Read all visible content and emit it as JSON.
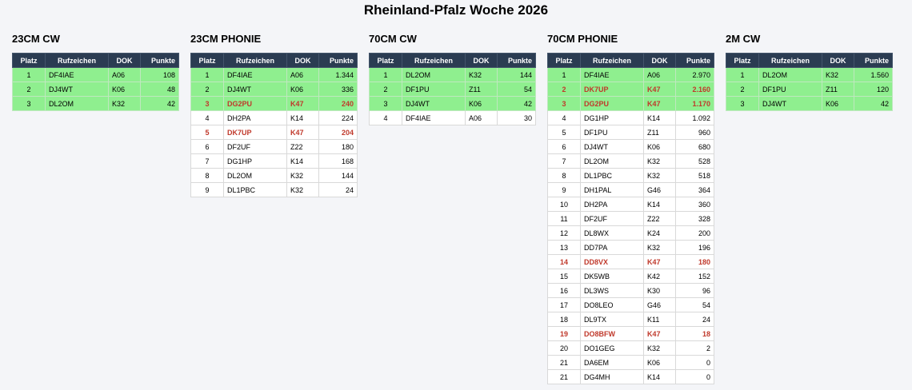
{
  "page_title": "Rheinland-Pfalz Woche 2026",
  "columns": [
    "Platz",
    "Rufzeichen",
    "DOK",
    "Punkte"
  ],
  "highlight_colors": {
    "podium": "#8fef8f",
    "own_dok": "#c0392b",
    "header": "#2b3c52"
  },
  "bands": [
    {
      "title": "23CM CW",
      "rows": [
        {
          "platz": "1",
          "call": "DF4IAE",
          "dok": "A06",
          "pts": "108"
        },
        {
          "platz": "2",
          "call": "DJ4WT",
          "dok": "K06",
          "pts": "48"
        },
        {
          "platz": "3",
          "call": "DL2OM",
          "dok": "K32",
          "pts": "42"
        }
      ]
    },
    {
      "title": "23CM PHONIE",
      "rows": [
        {
          "platz": "1",
          "call": "DF4IAE",
          "dok": "A06",
          "pts": "1.344"
        },
        {
          "platz": "2",
          "call": "DJ4WT",
          "dok": "K06",
          "pts": "336"
        },
        {
          "platz": "3",
          "call": "DG2PU",
          "dok": "K47",
          "pts": "240"
        },
        {
          "platz": "4",
          "call": "DH2PA",
          "dok": "K14",
          "pts": "224"
        },
        {
          "platz": "5",
          "call": "DK7UP",
          "dok": "K47",
          "pts": "204"
        },
        {
          "platz": "6",
          "call": "DF2UF",
          "dok": "Z22",
          "pts": "180"
        },
        {
          "platz": "7",
          "call": "DG1HP",
          "dok": "K14",
          "pts": "168"
        },
        {
          "platz": "8",
          "call": "DL2OM",
          "dok": "K32",
          "pts": "144"
        },
        {
          "platz": "9",
          "call": "DL1PBC",
          "dok": "K32",
          "pts": "24"
        }
      ]
    },
    {
      "title": "70CM CW",
      "rows": [
        {
          "platz": "1",
          "call": "DL2OM",
          "dok": "K32",
          "pts": "144"
        },
        {
          "platz": "2",
          "call": "DF1PU",
          "dok": "Z11",
          "pts": "54"
        },
        {
          "platz": "3",
          "call": "DJ4WT",
          "dok": "K06",
          "pts": "42"
        },
        {
          "platz": "4",
          "call": "DF4IAE",
          "dok": "A06",
          "pts": "30"
        }
      ]
    },
    {
      "title": "70CM PHONIE",
      "rows": [
        {
          "platz": "1",
          "call": "DF4IAE",
          "dok": "A06",
          "pts": "2.970"
        },
        {
          "platz": "2",
          "call": "DK7UP",
          "dok": "K47",
          "pts": "2.160"
        },
        {
          "platz": "3",
          "call": "DG2PU",
          "dok": "K47",
          "pts": "1.170"
        },
        {
          "platz": "4",
          "call": "DG1HP",
          "dok": "K14",
          "pts": "1.092"
        },
        {
          "platz": "5",
          "call": "DF1PU",
          "dok": "Z11",
          "pts": "960"
        },
        {
          "platz": "6",
          "call": "DJ4WT",
          "dok": "K06",
          "pts": "680"
        },
        {
          "platz": "7",
          "call": "DL2OM",
          "dok": "K32",
          "pts": "528"
        },
        {
          "platz": "8",
          "call": "DL1PBC",
          "dok": "K32",
          "pts": "518"
        },
        {
          "platz": "9",
          "call": "DH1PAL",
          "dok": "G46",
          "pts": "364"
        },
        {
          "platz": "10",
          "call": "DH2PA",
          "dok": "K14",
          "pts": "360"
        },
        {
          "platz": "11",
          "call": "DF2UF",
          "dok": "Z22",
          "pts": "328"
        },
        {
          "platz": "12",
          "call": "DL8WX",
          "dok": "K24",
          "pts": "200"
        },
        {
          "platz": "13",
          "call": "DD7PA",
          "dok": "K32",
          "pts": "196"
        },
        {
          "platz": "14",
          "call": "DD8VX",
          "dok": "K47",
          "pts": "180"
        },
        {
          "platz": "15",
          "call": "DK5WB",
          "dok": "K42",
          "pts": "152"
        },
        {
          "platz": "16",
          "call": "DL3WS",
          "dok": "K30",
          "pts": "96"
        },
        {
          "platz": "17",
          "call": "DO8LEO",
          "dok": "G46",
          "pts": "54"
        },
        {
          "platz": "18",
          "call": "DL9TX",
          "dok": "K11",
          "pts": "24"
        },
        {
          "platz": "19",
          "call": "DO8BFW",
          "dok": "K47",
          "pts": "18"
        },
        {
          "platz": "20",
          "call": "DO1GEG",
          "dok": "K32",
          "pts": "2"
        },
        {
          "platz": "21",
          "call": "DA6EM",
          "dok": "K06",
          "pts": "0"
        },
        {
          "platz": "21",
          "call": "DG4MH",
          "dok": "K14",
          "pts": "0"
        }
      ]
    },
    {
      "title": "2M CW",
      "rows": [
        {
          "platz": "1",
          "call": "DL2OM",
          "dok": "K32",
          "pts": "1.560"
        },
        {
          "platz": "2",
          "call": "DF1PU",
          "dok": "Z11",
          "pts": "120"
        },
        {
          "platz": "3",
          "call": "DJ4WT",
          "dok": "K06",
          "pts": "42"
        }
      ]
    }
  ]
}
